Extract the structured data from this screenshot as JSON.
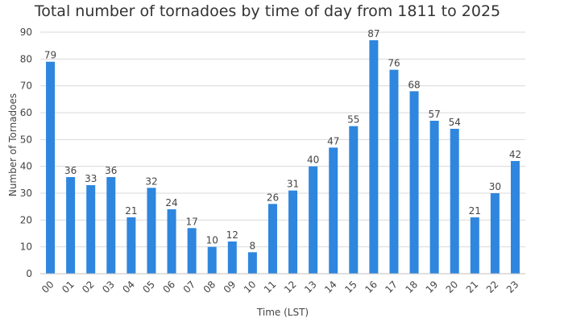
{
  "chart_data": {
    "type": "bar",
    "title": "Total number of tornadoes by time of day from 1811 to 2025",
    "xlabel": "Time (LST)",
    "ylabel": "Number of Tornadoes",
    "categories": [
      "00",
      "01",
      "02",
      "03",
      "04",
      "05",
      "06",
      "07",
      "08",
      "09",
      "10",
      "11",
      "12",
      "13",
      "14",
      "15",
      "16",
      "17",
      "18",
      "19",
      "20",
      "21",
      "22",
      "23"
    ],
    "values": [
      79,
      36,
      33,
      36,
      21,
      32,
      24,
      17,
      10,
      12,
      8,
      26,
      31,
      40,
      47,
      55,
      87,
      76,
      68,
      57,
      54,
      21,
      30,
      42
    ],
    "ylim": [
      0,
      90
    ],
    "yticks": [
      0,
      10,
      20,
      30,
      40,
      50,
      60,
      70,
      80,
      90
    ],
    "grid": true,
    "legend": "none",
    "bar_color": "#2e86de"
  }
}
